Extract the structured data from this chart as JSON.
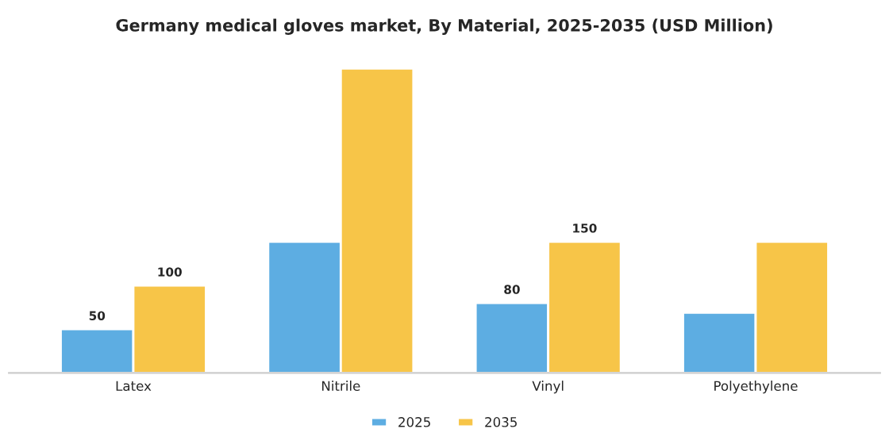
{
  "chart_data": {
    "type": "bar",
    "title": "Germany medical gloves market, By Material, 2025-2035 (USD Million)",
    "categories": [
      "Latex",
      "Nitrile",
      "Vinyl",
      "Polyethylene"
    ],
    "series": [
      {
        "name": "2025",
        "color": "#5dade2",
        "values": [
          50,
          150,
          80,
          69
        ],
        "value_labels": [
          "50",
          null,
          "80",
          null
        ]
      },
      {
        "name": "2035",
        "color": "#f7c548",
        "values": [
          100,
          348,
          150,
          150
        ],
        "value_labels": [
          "100",
          null,
          "150",
          null
        ]
      }
    ],
    "grid": false,
    "legend": "bottom",
    "tick_labels": "x"
  }
}
